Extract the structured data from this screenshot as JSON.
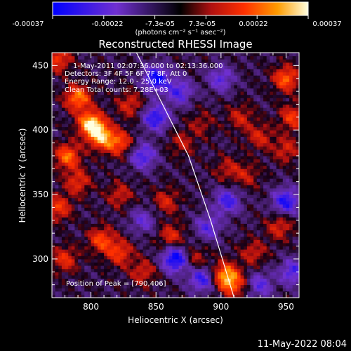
{
  "colorbar": {
    "tick_labels": [
      "-0.00037",
      "-0.00022",
      "-7.3e-05",
      "7.3e-05",
      "0.00022",
      "0.00037"
    ],
    "unit_label": "(photons cm⁻² s⁻¹ asec⁻²)",
    "range": [
      -0.00037,
      0.00037
    ]
  },
  "chart_data": {
    "type": "heatmap",
    "title": "Reconstructed RHESSI Image",
    "xlabel": "Heliocentric X (arcsec)",
    "ylabel": "Heliocentric Y (arcsec)",
    "xlim": [
      770,
      960
    ],
    "ylim": [
      270,
      460
    ],
    "x_ticks": [
      800,
      850,
      900,
      950
    ],
    "y_ticks": [
      300,
      350,
      400,
      450
    ],
    "annotations": [
      "1-May-2011 02:07:36.000 to 02:13:36.000",
      "Detectors: 3F 4F 5F 6F 7F 8F, Att 0",
      "Energy Range: 12.0 - 25.0 keV",
      "Clean    Total counts: 7.28E+03",
      "Position of Peak = [790,406]"
    ],
    "limb": [
      [
        835,
        460
      ],
      [
        855,
        420
      ],
      [
        875,
        380
      ],
      [
        892,
        330
      ],
      [
        910,
        270
      ]
    ],
    "peak": [
      790,
      406
    ],
    "hot_spots": [
      {
        "x": 775,
        "y": 455,
        "v": 0.2
      },
      {
        "x": 790,
        "y": 425,
        "v": 0.28
      },
      {
        "x": 800,
        "y": 405,
        "v": 0.37
      },
      {
        "x": 808,
        "y": 395,
        "v": 0.3
      },
      {
        "x": 822,
        "y": 390,
        "v": 0.22
      },
      {
        "x": 830,
        "y": 420,
        "v": 0.16
      },
      {
        "x": 782,
        "y": 380,
        "v": 0.26
      },
      {
        "x": 790,
        "y": 360,
        "v": 0.18
      },
      {
        "x": 775,
        "y": 340,
        "v": 0.2
      },
      {
        "x": 780,
        "y": 300,
        "v": 0.18
      },
      {
        "x": 808,
        "y": 315,
        "v": 0.22
      },
      {
        "x": 822,
        "y": 305,
        "v": 0.2
      },
      {
        "x": 840,
        "y": 290,
        "v": 0.15
      },
      {
        "x": 822,
        "y": 350,
        "v": 0.14
      },
      {
        "x": 858,
        "y": 345,
        "v": 0.15
      },
      {
        "x": 862,
        "y": 318,
        "v": 0.17
      },
      {
        "x": 880,
        "y": 300,
        "v": 0.14
      },
      {
        "x": 903,
        "y": 288,
        "v": 0.28
      },
      {
        "x": 910,
        "y": 280,
        "v": 0.2
      },
      {
        "x": 925,
        "y": 305,
        "v": 0.14
      },
      {
        "x": 945,
        "y": 325,
        "v": 0.16
      },
      {
        "x": 950,
        "y": 440,
        "v": 0.25
      },
      {
        "x": 955,
        "y": 410,
        "v": 0.2
      },
      {
        "x": 950,
        "y": 385,
        "v": 0.15
      },
      {
        "x": 930,
        "y": 395,
        "v": 0.15
      },
      {
        "x": 915,
        "y": 410,
        "v": 0.14
      },
      {
        "x": 905,
        "y": 370,
        "v": 0.12
      },
      {
        "x": 920,
        "y": 365,
        "v": 0.12
      },
      {
        "x": 885,
        "y": 405,
        "v": 0.1
      },
      {
        "x": 870,
        "y": 390,
        "v": 0.12
      }
    ],
    "cold_spots": [
      {
        "x": 850,
        "y": 440,
        "v": -0.2
      },
      {
        "x": 850,
        "y": 410,
        "v": -0.18
      },
      {
        "x": 840,
        "y": 380,
        "v": -0.15
      },
      {
        "x": 868,
        "y": 430,
        "v": -0.14
      },
      {
        "x": 900,
        "y": 440,
        "v": -0.12
      },
      {
        "x": 905,
        "y": 345,
        "v": -0.15
      },
      {
        "x": 865,
        "y": 300,
        "v": -0.22
      },
      {
        "x": 885,
        "y": 285,
        "v": -0.16
      },
      {
        "x": 950,
        "y": 345,
        "v": -0.18
      },
      {
        "x": 955,
        "y": 290,
        "v": -0.14
      },
      {
        "x": 930,
        "y": 280,
        "v": -0.12
      },
      {
        "x": 890,
        "y": 325,
        "v": -0.12
      },
      {
        "x": 840,
        "y": 330,
        "v": -0.1
      }
    ]
  },
  "footer": {
    "timestamp": "11-May-2022 08:04"
  }
}
